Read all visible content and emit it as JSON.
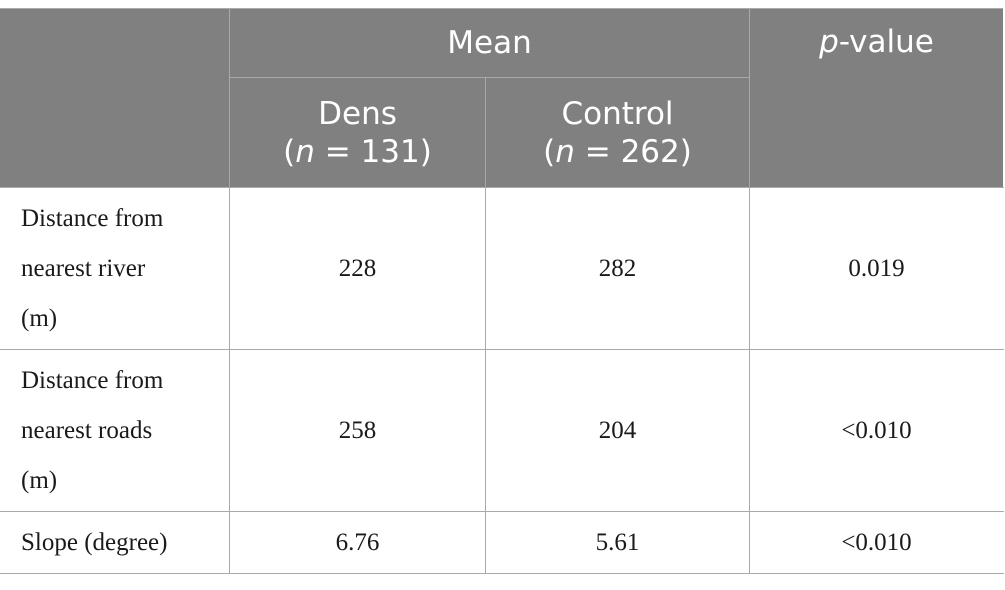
{
  "header": {
    "group_label": "Mean",
    "pvalue_italic": "p",
    "pvalue_rest": "-value",
    "columns": [
      {
        "name": "Dens",
        "n_open": "(",
        "n_italic": "n",
        "n_rest": " = 131)"
      },
      {
        "name": "Control",
        "n_open": "(",
        "n_italic": "n",
        "n_rest": " = 262)"
      }
    ]
  },
  "rows": [
    {
      "label": "Distance from nearest river (m)",
      "label_lines": [
        "Distance from",
        "nearest river",
        "(m)"
      ],
      "dens": "228",
      "control": "282",
      "p_value": "0.019"
    },
    {
      "label": "Distance from nearest roads (m)",
      "label_lines": [
        "Distance from",
        "nearest roads",
        "(m)"
      ],
      "dens": "258",
      "control": "204",
      "p_value": "<0.010"
    },
    {
      "label": "Slope (degree)",
      "label_lines": [
        "Slope (degree)"
      ],
      "dens": "6.76",
      "control": "5.61",
      "p_value": "<0.010"
    }
  ]
}
